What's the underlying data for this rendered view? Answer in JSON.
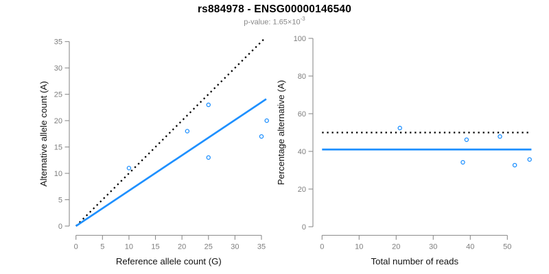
{
  "header": {
    "title": "rs884978 - ENSG00000146540",
    "subtitle_base": "p-value: 1.65×10",
    "subtitle_exponent": "-3"
  },
  "palette": {
    "accent_blue": "#1E90FF",
    "line_black": "#000000",
    "axis_gray": "#8c8c8c",
    "tick_label_gray": "#7d7d7d",
    "axis_title_color": "#111111"
  },
  "chart_data": [
    {
      "name": "allele-counts-scatter",
      "type": "scatter",
      "title": "",
      "xlabel": "Reference allele count (G)",
      "ylabel": "Alternative allele count (A)",
      "xlim": [
        0,
        35
      ],
      "ylim": [
        0,
        35
      ],
      "xticks": [
        0,
        5,
        10,
        15,
        20,
        25,
        30,
        35
      ],
      "yticks": [
        0,
        5,
        10,
        15,
        20,
        25,
        30,
        35
      ],
      "grid": false,
      "legend": "none",
      "points": [
        [
          10,
          11
        ],
        [
          21,
          18
        ],
        [
          25,
          23
        ],
        [
          25,
          13
        ],
        [
          35,
          17
        ],
        [
          36,
          20
        ]
      ],
      "lines": [
        {
          "name": "identity-line",
          "style": "dotted",
          "color": "#000000",
          "slope": 1,
          "intercept": 0,
          "x_range": [
            0,
            35.6
          ]
        },
        {
          "name": "fit-line",
          "style": "solid",
          "color": "#1E90FF",
          "slope": 0.671,
          "intercept": 0,
          "x_range": [
            0,
            35.9
          ]
        }
      ]
    },
    {
      "name": "percentage-alternative-scatter",
      "type": "scatter",
      "title": "",
      "xlabel": "Total number of reads",
      "ylabel": "Percentage alternative (A)",
      "xlim": [
        0,
        50
      ],
      "ylim": [
        0,
        100
      ],
      "xticks": [
        0,
        10,
        20,
        30,
        40,
        50
      ],
      "yticks": [
        0,
        20,
        40,
        60,
        80,
        100
      ],
      "grid": false,
      "legend": "none",
      "points": [
        [
          21,
          52.4
        ],
        [
          39,
          46.2
        ],
        [
          48,
          47.9
        ],
        [
          38,
          34.2
        ],
        [
          52,
          32.7
        ],
        [
          56,
          35.7
        ]
      ],
      "lines": [
        {
          "name": "expected-50-percent-line",
          "style": "dotted",
          "color": "#000000",
          "slope": 0,
          "intercept": 50,
          "x_range": [
            0,
            56.5
          ]
        },
        {
          "name": "mean-percentage-line",
          "style": "solid",
          "color": "#1E90FF",
          "slope": 0,
          "intercept": 41,
          "x_range": [
            0,
            56.5
          ]
        }
      ]
    }
  ]
}
